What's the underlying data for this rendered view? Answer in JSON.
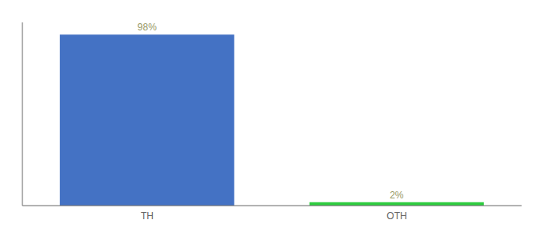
{
  "chart_data": {
    "type": "bar",
    "categories": [
      "TH",
      "OTH"
    ],
    "values": [
      98,
      2
    ],
    "value_labels": [
      "98%",
      "2%"
    ],
    "colors": [
      "#4472c4",
      "#2ecc40"
    ],
    "ylim": [
      0,
      105
    ],
    "data_labels": true,
    "tick_labels": "x",
    "grid": false
  }
}
